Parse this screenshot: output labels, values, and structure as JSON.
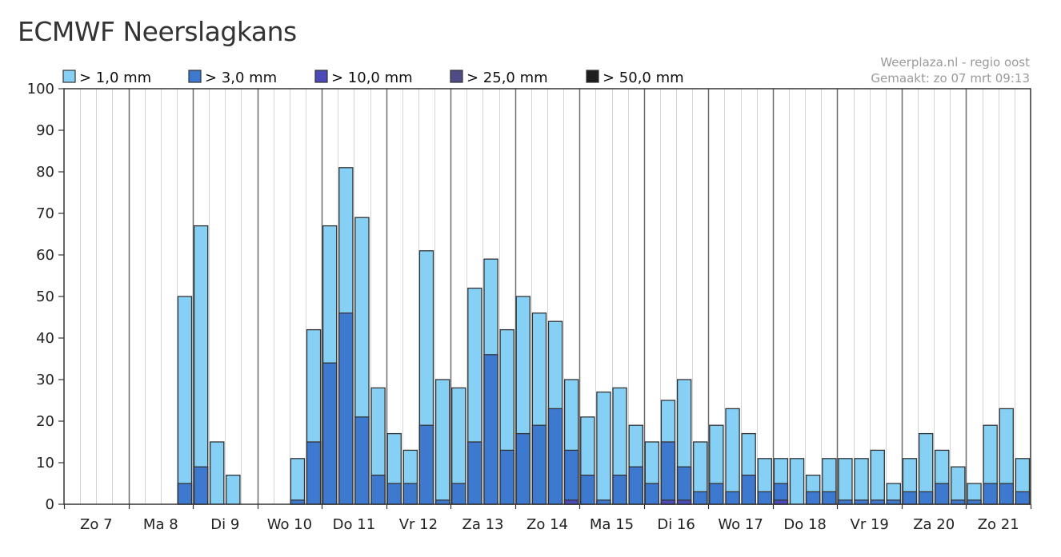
{
  "page": {
    "title": "ECMWF Neerslagkans"
  },
  "chart_data": {
    "type": "bar",
    "stacked": true,
    "title": "ECMWF Neerslagkans",
    "ylim": [
      0,
      100
    ],
    "yticks": [
      0,
      10,
      20,
      30,
      40,
      50,
      60,
      70,
      80,
      90,
      100
    ],
    "grid": "vertical",
    "day_labels": [
      "Zo 7",
      "Ma 8",
      "Di 9",
      "Wo 10",
      "Do 11",
      "Vr 12",
      "Za 13",
      "Zo 14",
      "Ma 15",
      "Di 16",
      "Wo 17",
      "Do 18",
      "Vr 19",
      "Za 20",
      "Zo 21"
    ],
    "bars_per_day": 4,
    "credits": [
      "Weerplaza.nl - regio oost",
      "Gemaakt: zo 07 mrt 09:13"
    ],
    "legend_position": "top",
    "series": [
      {
        "name": "> 1,0 mm",
        "color": "#86d0f5",
        "values": [
          0,
          0,
          0,
          0,
          0,
          0,
          0,
          50,
          67,
          15,
          7,
          0,
          0,
          0,
          11,
          42,
          67,
          81,
          69,
          28,
          17,
          13,
          61,
          30,
          28,
          52,
          59,
          42,
          50,
          46,
          44,
          30,
          21,
          27,
          28,
          19,
          15,
          25,
          30,
          15,
          19,
          23,
          17,
          11,
          11,
          11,
          7,
          11,
          11,
          11,
          13,
          5,
          11,
          17,
          13,
          9,
          5,
          19,
          23,
          11
        ]
      },
      {
        "name": "> 3,0 mm",
        "color": "#3e79d0",
        "values": [
          0,
          0,
          0,
          0,
          0,
          0,
          0,
          5,
          9,
          0,
          0,
          0,
          0,
          0,
          1,
          15,
          34,
          46,
          21,
          7,
          5,
          5,
          19,
          1,
          5,
          15,
          36,
          13,
          17,
          19,
          23,
          13,
          7,
          1,
          7,
          9,
          5,
          15,
          9,
          3,
          5,
          3,
          7,
          3,
          5,
          0,
          3,
          3,
          1,
          1,
          1,
          1,
          3,
          3,
          5,
          1,
          1,
          5,
          5,
          3
        ]
      },
      {
        "name": "> 10,0 mm",
        "color": "#4a4ab8",
        "values": [
          0,
          0,
          0,
          0,
          0,
          0,
          0,
          0,
          0,
          0,
          0,
          0,
          0,
          0,
          0,
          0,
          0,
          0,
          0,
          0,
          0,
          0,
          0,
          0,
          0,
          0,
          0,
          0,
          0,
          0,
          0,
          1,
          0,
          0,
          0,
          0,
          0,
          1,
          1,
          0,
          0,
          0,
          0,
          0,
          1,
          0,
          0,
          0,
          0,
          0,
          0,
          0,
          0,
          0,
          0,
          0,
          0,
          0,
          0,
          0
        ]
      },
      {
        "name": "> 25,0 mm",
        "color": "#4e4b85",
        "values": []
      },
      {
        "name": "> 50,0 mm",
        "color": "#1d1d1d",
        "values": []
      }
    ]
  }
}
